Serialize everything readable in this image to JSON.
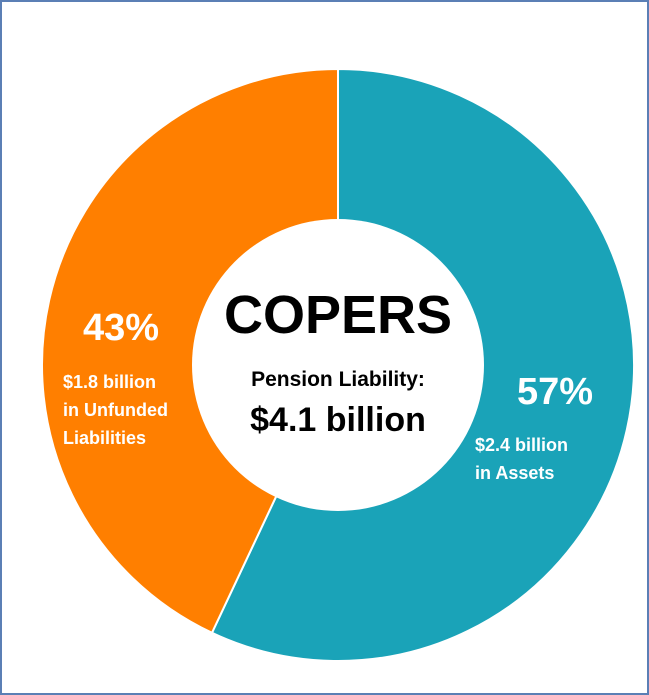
{
  "chart_data": {
    "type": "pie",
    "variant": "donut",
    "center_title": "COPERS",
    "center_subtitle": "Pension Liability:",
    "center_total": "$4.1 billion",
    "slices": [
      {
        "label": "$2.4 billion in Assets",
        "percent_label": "57%",
        "value": 57,
        "line1": "$2.4 billion",
        "line2": "in Assets",
        "color": "#1aa3b8"
      },
      {
        "label": "$1.8 billion in Unfunded Liabilities",
        "percent_label": "43%",
        "value": 43,
        "line1": "$1.8 billion",
        "line2": "in Unfunded",
        "line3": "Liabilities",
        "color": "#ff7f00"
      }
    ]
  },
  "colors": {
    "border": "#5b7fb5",
    "center_fill": "#ffffff",
    "slice_text": "#ffffff",
    "center_text": "#000000"
  }
}
